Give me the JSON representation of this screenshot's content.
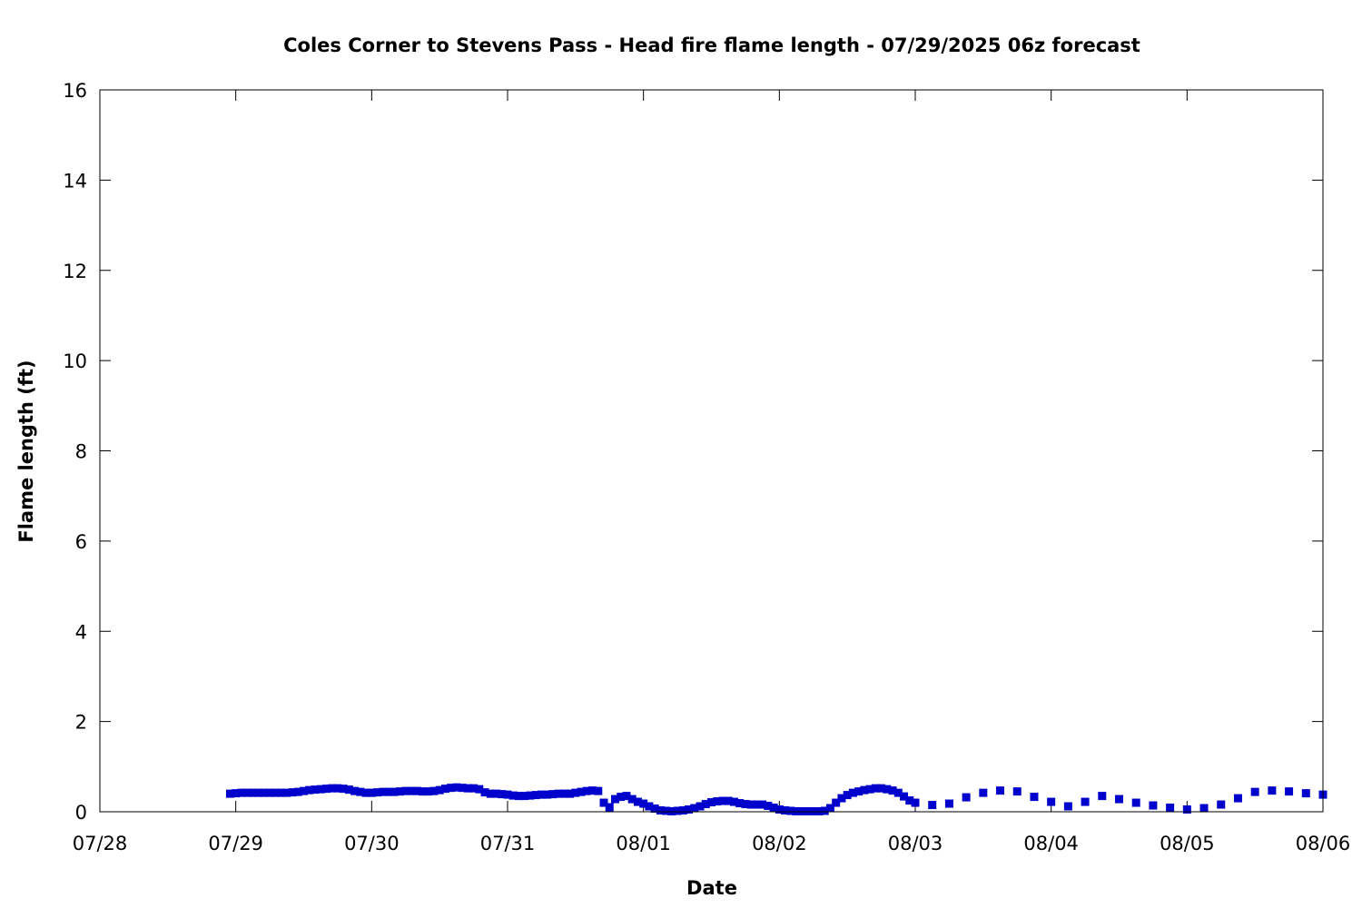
{
  "chart_data": {
    "type": "scatter",
    "title": "Coles Corner to Stevens Pass - Head fire flame length - 07/29/2025 06z forecast",
    "xlabel": "Date",
    "ylabel": "Flame length (ft)",
    "x_ticks": [
      "07/28",
      "07/29",
      "07/30",
      "07/31",
      "08/01",
      "08/02",
      "08/03",
      "08/04",
      "08/05",
      "08/06"
    ],
    "xlim": [
      "2025-07-28T00:00Z",
      "2025-08-06T00:00Z"
    ],
    "ylim": [
      0,
      16
    ],
    "y_ticks": [
      0,
      2,
      4,
      6,
      8,
      10,
      12,
      14,
      16
    ],
    "grid": false,
    "legend": "none",
    "marker_color": "#0000cc",
    "series": [
      {
        "points": [
          [
            "2025-07-28T23:00Z",
            0.4
          ],
          [
            "2025-07-29T00:00Z",
            0.41
          ],
          [
            "2025-07-29T01:00Z",
            0.42
          ],
          [
            "2025-07-29T02:00Z",
            0.42
          ],
          [
            "2025-07-29T03:00Z",
            0.42
          ],
          [
            "2025-07-29T04:00Z",
            0.42
          ],
          [
            "2025-07-29T05:00Z",
            0.42
          ],
          [
            "2025-07-29T06:00Z",
            0.42
          ],
          [
            "2025-07-29T07:00Z",
            0.42
          ],
          [
            "2025-07-29T08:00Z",
            0.42
          ],
          [
            "2025-07-29T09:00Z",
            0.42
          ],
          [
            "2025-07-29T10:00Z",
            0.43
          ],
          [
            "2025-07-29T11:00Z",
            0.44
          ],
          [
            "2025-07-29T12:00Z",
            0.46
          ],
          [
            "2025-07-29T13:00Z",
            0.48
          ],
          [
            "2025-07-29T14:00Z",
            0.49
          ],
          [
            "2025-07-29T15:00Z",
            0.5
          ],
          [
            "2025-07-29T16:00Z",
            0.51
          ],
          [
            "2025-07-29T17:00Z",
            0.52
          ],
          [
            "2025-07-29T18:00Z",
            0.52
          ],
          [
            "2025-07-29T19:00Z",
            0.51
          ],
          [
            "2025-07-29T20:00Z",
            0.49
          ],
          [
            "2025-07-29T21:00Z",
            0.46
          ],
          [
            "2025-07-29T22:00Z",
            0.44
          ],
          [
            "2025-07-29T23:00Z",
            0.42
          ],
          [
            "2025-07-30T00:00Z",
            0.42
          ],
          [
            "2025-07-30T01:00Z",
            0.43
          ],
          [
            "2025-07-30T02:00Z",
            0.44
          ],
          [
            "2025-07-30T03:00Z",
            0.44
          ],
          [
            "2025-07-30T04:00Z",
            0.44
          ],
          [
            "2025-07-30T05:00Z",
            0.45
          ],
          [
            "2025-07-30T06:00Z",
            0.46
          ],
          [
            "2025-07-30T07:00Z",
            0.46
          ],
          [
            "2025-07-30T08:00Z",
            0.46
          ],
          [
            "2025-07-30T09:00Z",
            0.45
          ],
          [
            "2025-07-30T10:00Z",
            0.45
          ],
          [
            "2025-07-30T11:00Z",
            0.46
          ],
          [
            "2025-07-30T12:00Z",
            0.48
          ],
          [
            "2025-07-30T13:00Z",
            0.51
          ],
          [
            "2025-07-30T14:00Z",
            0.53
          ],
          [
            "2025-07-30T15:00Z",
            0.54
          ],
          [
            "2025-07-30T16:00Z",
            0.53
          ],
          [
            "2025-07-30T17:00Z",
            0.52
          ],
          [
            "2025-07-30T18:00Z",
            0.52
          ],
          [
            "2025-07-30T19:00Z",
            0.5
          ],
          [
            "2025-07-30T20:00Z",
            0.43
          ],
          [
            "2025-07-30T21:00Z",
            0.4
          ],
          [
            "2025-07-30T22:00Z",
            0.4
          ],
          [
            "2025-07-30T23:00Z",
            0.39
          ],
          [
            "2025-07-31T00:00Z",
            0.38
          ],
          [
            "2025-07-31T01:00Z",
            0.36
          ],
          [
            "2025-07-31T02:00Z",
            0.35
          ],
          [
            "2025-07-31T03:00Z",
            0.35
          ],
          [
            "2025-07-31T04:00Z",
            0.36
          ],
          [
            "2025-07-31T05:00Z",
            0.37
          ],
          [
            "2025-07-31T06:00Z",
            0.38
          ],
          [
            "2025-07-31T07:00Z",
            0.38
          ],
          [
            "2025-07-31T08:00Z",
            0.39
          ],
          [
            "2025-07-31T09:00Z",
            0.4
          ],
          [
            "2025-07-31T10:00Z",
            0.4
          ],
          [
            "2025-07-31T11:00Z",
            0.4
          ],
          [
            "2025-07-31T12:00Z",
            0.42
          ],
          [
            "2025-07-31T13:00Z",
            0.44
          ],
          [
            "2025-07-31T14:00Z",
            0.46
          ],
          [
            "2025-07-31T15:00Z",
            0.47
          ],
          [
            "2025-07-31T16:00Z",
            0.46
          ],
          [
            "2025-07-31T17:00Z",
            0.2
          ],
          [
            "2025-07-31T18:00Z",
            0.1
          ],
          [
            "2025-07-31T19:00Z",
            0.28
          ],
          [
            "2025-07-31T20:00Z",
            0.33
          ],
          [
            "2025-07-31T21:00Z",
            0.35
          ],
          [
            "2025-07-31T22:00Z",
            0.28
          ],
          [
            "2025-07-31T23:00Z",
            0.22
          ],
          [
            "2025-08-01T00:00Z",
            0.18
          ],
          [
            "2025-08-01T01:00Z",
            0.12
          ],
          [
            "2025-08-01T02:00Z",
            0.07
          ],
          [
            "2025-08-01T03:00Z",
            0.03
          ],
          [
            "2025-08-01T04:00Z",
            0.02
          ],
          [
            "2025-08-01T05:00Z",
            0.01
          ],
          [
            "2025-08-01T06:00Z",
            0.02
          ],
          [
            "2025-08-01T07:00Z",
            0.03
          ],
          [
            "2025-08-01T08:00Z",
            0.05
          ],
          [
            "2025-08-01T09:00Z",
            0.08
          ],
          [
            "2025-08-01T10:00Z",
            0.12
          ],
          [
            "2025-08-01T11:00Z",
            0.17
          ],
          [
            "2025-08-01T12:00Z",
            0.21
          ],
          [
            "2025-08-01T13:00Z",
            0.23
          ],
          [
            "2025-08-01T14:00Z",
            0.24
          ],
          [
            "2025-08-01T15:00Z",
            0.24
          ],
          [
            "2025-08-01T16:00Z",
            0.22
          ],
          [
            "2025-08-01T17:00Z",
            0.19
          ],
          [
            "2025-08-01T18:00Z",
            0.17
          ],
          [
            "2025-08-01T19:00Z",
            0.16
          ],
          [
            "2025-08-01T20:00Z",
            0.16
          ],
          [
            "2025-08-01T21:00Z",
            0.16
          ],
          [
            "2025-08-01T22:00Z",
            0.13
          ],
          [
            "2025-08-01T23:00Z",
            0.09
          ],
          [
            "2025-08-02T00:00Z",
            0.05
          ],
          [
            "2025-08-02T01:00Z",
            0.03
          ],
          [
            "2025-08-02T02:00Z",
            0.02
          ],
          [
            "2025-08-02T03:00Z",
            0.01
          ],
          [
            "2025-08-02T04:00Z",
            0.01
          ],
          [
            "2025-08-02T05:00Z",
            0.01
          ],
          [
            "2025-08-02T06:00Z",
            0.01
          ],
          [
            "2025-08-02T07:00Z",
            0.01
          ],
          [
            "2025-08-02T08:00Z",
            0.02
          ],
          [
            "2025-08-02T09:00Z",
            0.08
          ],
          [
            "2025-08-02T10:00Z",
            0.2
          ],
          [
            "2025-08-02T11:00Z",
            0.3
          ],
          [
            "2025-08-02T12:00Z",
            0.37
          ],
          [
            "2025-08-02T13:00Z",
            0.42
          ],
          [
            "2025-08-02T14:00Z",
            0.45
          ],
          [
            "2025-08-02T15:00Z",
            0.48
          ],
          [
            "2025-08-02T16:00Z",
            0.5
          ],
          [
            "2025-08-02T17:00Z",
            0.52
          ],
          [
            "2025-08-02T18:00Z",
            0.52
          ],
          [
            "2025-08-02T19:00Z",
            0.5
          ],
          [
            "2025-08-02T20:00Z",
            0.47
          ],
          [
            "2025-08-02T21:00Z",
            0.42
          ],
          [
            "2025-08-02T22:00Z",
            0.34
          ],
          [
            "2025-08-02T23:00Z",
            0.25
          ],
          [
            "2025-08-03T00:00Z",
            0.2
          ],
          [
            "2025-08-03T03:00Z",
            0.15
          ],
          [
            "2025-08-03T06:00Z",
            0.18
          ],
          [
            "2025-08-03T09:00Z",
            0.32
          ],
          [
            "2025-08-03T12:00Z",
            0.42
          ],
          [
            "2025-08-03T15:00Z",
            0.47
          ],
          [
            "2025-08-03T18:00Z",
            0.45
          ],
          [
            "2025-08-03T21:00Z",
            0.33
          ],
          [
            "2025-08-04T00:00Z",
            0.22
          ],
          [
            "2025-08-04T03:00Z",
            0.12
          ],
          [
            "2025-08-04T06:00Z",
            0.22
          ],
          [
            "2025-08-04T09:00Z",
            0.35
          ],
          [
            "2025-08-04T12:00Z",
            0.28
          ],
          [
            "2025-08-04T15:00Z",
            0.2
          ],
          [
            "2025-08-04T18:00Z",
            0.14
          ],
          [
            "2025-08-04T21:00Z",
            0.09
          ],
          [
            "2025-08-05T00:00Z",
            0.05
          ],
          [
            "2025-08-05T03:00Z",
            0.08
          ],
          [
            "2025-08-05T06:00Z",
            0.16
          ],
          [
            "2025-08-05T09:00Z",
            0.3
          ],
          [
            "2025-08-05T12:00Z",
            0.44
          ],
          [
            "2025-08-05T15:00Z",
            0.47
          ],
          [
            "2025-08-05T18:00Z",
            0.45
          ],
          [
            "2025-08-05T21:00Z",
            0.41
          ],
          [
            "2025-08-06T00:00Z",
            0.38
          ]
        ]
      }
    ]
  }
}
